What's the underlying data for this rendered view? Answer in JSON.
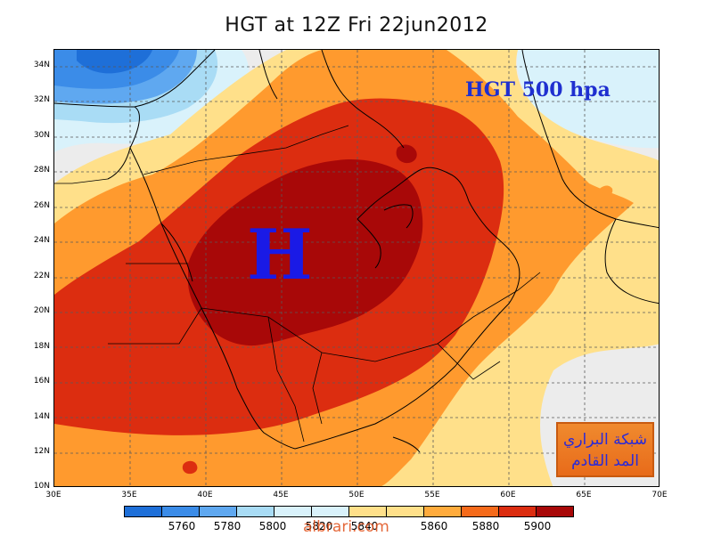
{
  "title": "HGT at 12Z Fri 22jun2012",
  "inner_title": "HGT 500 hpa",
  "high_marker": "H",
  "logo": {
    "line1": "شبكة البراري",
    "line2": "المد القادم"
  },
  "watermark": "albrari.com",
  "latitude_labels": [
    "34N",
    "32N",
    "30N",
    "28N",
    "26N",
    "24N",
    "22N",
    "20N",
    "18N",
    "16N",
    "14N",
    "12N",
    "10N"
  ],
  "longitude_labels": [
    "30E",
    "35E",
    "40E",
    "45E",
    "50E",
    "55E",
    "60E",
    "65E",
    "70E"
  ],
  "colorbar": {
    "colors": [
      "#1e6fd8",
      "#3b8ce8",
      "#5fa8f0",
      "#a9dcf5",
      "#d9f2fb",
      "#ffe08a",
      "#ffab3c",
      "#f56a1a",
      "#dc2d10",
      "#a80808"
    ],
    "labels": [
      "5760",
      "5780",
      "5800",
      "5820",
      "5840",
      "5860",
      "5880",
      "5900"
    ]
  },
  "fill_colors": {
    "background": "#ececec",
    "l5760": "#1e6fd8",
    "l5780": "#3b8ce8",
    "l5800": "#5fa8f0",
    "l5820": "#a9dcf5",
    "l5840": "#d9f2fb",
    "l5860": "#ffe08a",
    "l5880": "#f56a1a",
    "l5900": "#dc2d10",
    "l5920": "#a80808",
    "coast": "#000000",
    "grid": "#5a5a5a"
  }
}
